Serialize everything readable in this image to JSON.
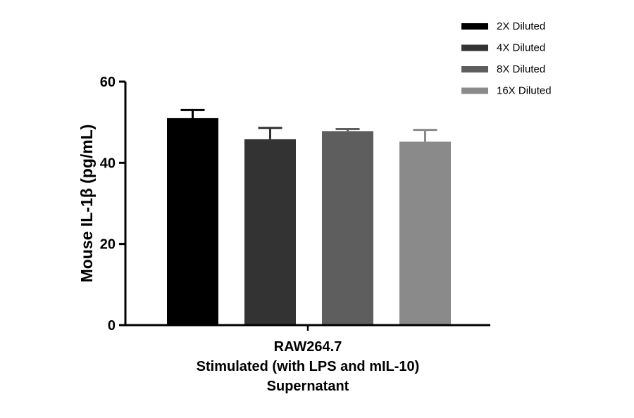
{
  "chart_data": {
    "type": "bar",
    "title": "",
    "ylabel": "Mouse IL-1β (pg/mL)",
    "xlabel_lines": [
      "RAW264.7",
      "Stimulated (with LPS and mIL-10)",
      "Supernatant"
    ],
    "ylim": [
      0,
      60
    ],
    "yticks": [
      0,
      20,
      40,
      60
    ],
    "legend_position": "top-right",
    "series": [
      {
        "name": "2X Diluted",
        "value": 51.0,
        "error": 2.0,
        "color": "#000000"
      },
      {
        "name": "4X Diluted",
        "value": 45.8,
        "error": 2.8,
        "color": "#333333"
      },
      {
        "name": "8X Diluted",
        "value": 47.8,
        "error": 0.5,
        "color": "#5e5e5e"
      },
      {
        "name": "16X Diluted",
        "value": 45.2,
        "error": 2.9,
        "color": "#8a8a8a"
      }
    ]
  }
}
